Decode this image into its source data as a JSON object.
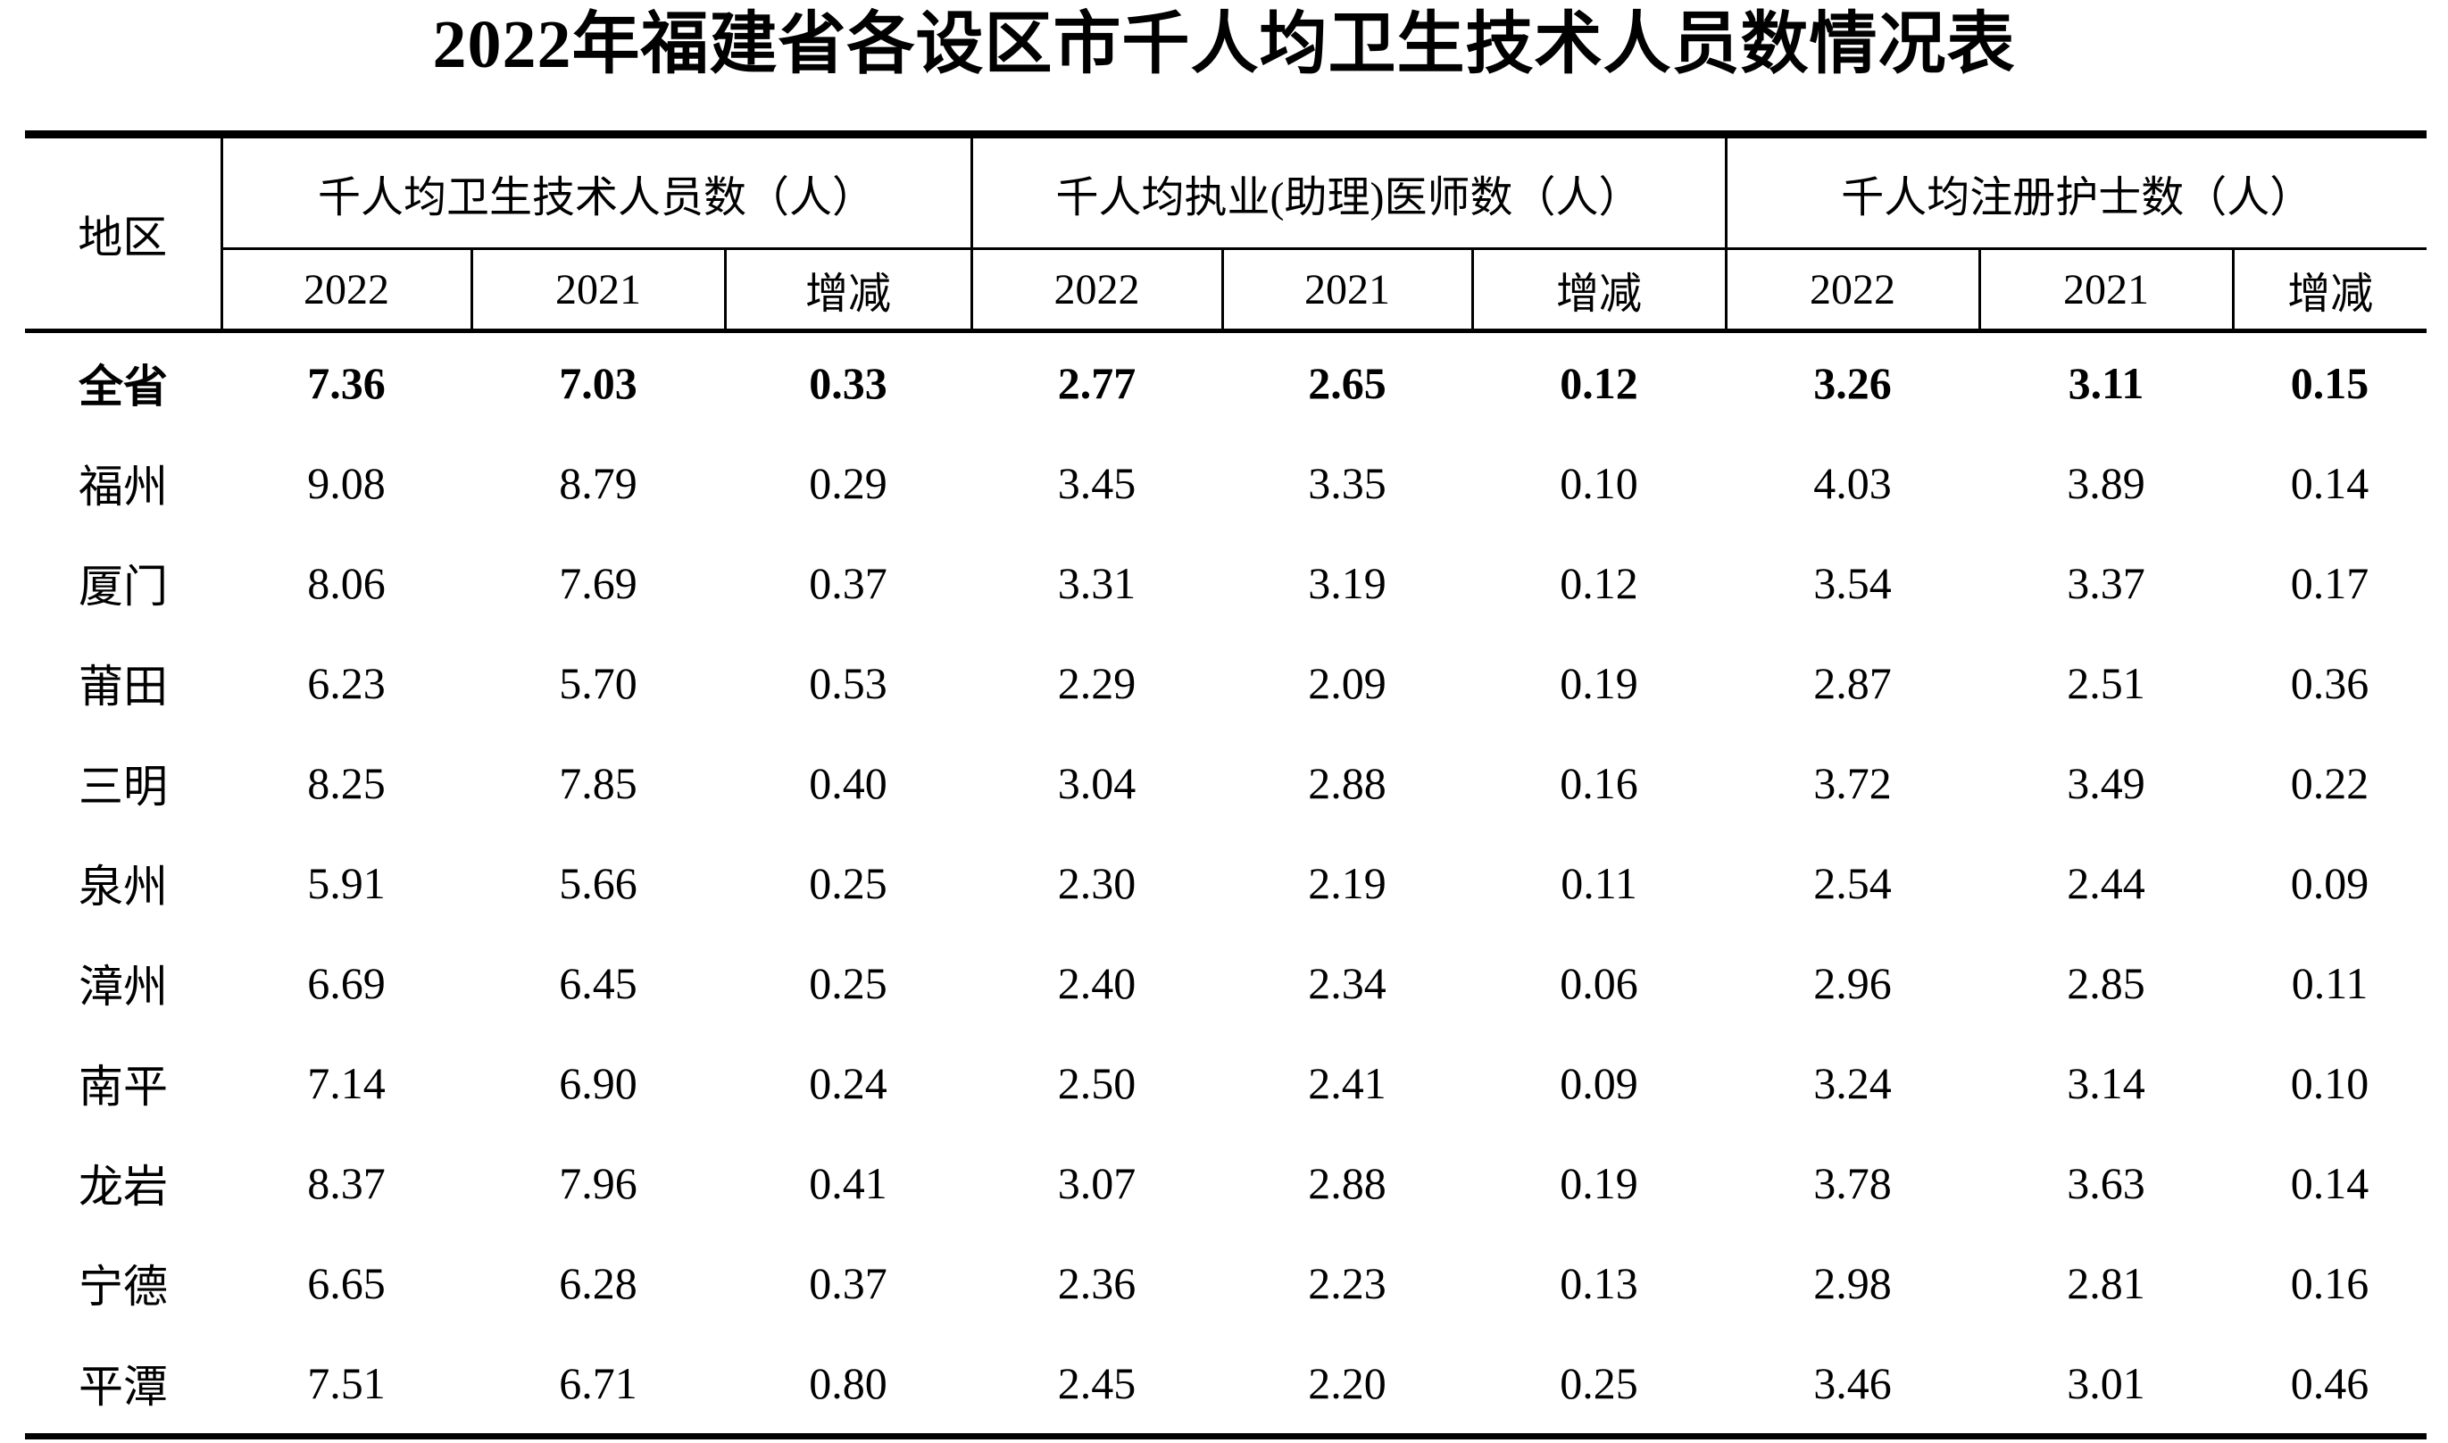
{
  "title": "2022年福建省各设区市千人均卫生技术人员数情况表",
  "colors": {
    "ink": "#000000",
    "background": "#ffffff"
  },
  "table": {
    "region_header": "地区",
    "groups": [
      {
        "label": "千人均卫生技术人员数（人）",
        "columns": [
          "2022",
          "2021",
          "增减"
        ]
      },
      {
        "label": "千人均执业(助理)医师数（人）",
        "columns": [
          "2022",
          "2021",
          "增减"
        ]
      },
      {
        "label": "千人均注册护士数（人）",
        "columns": [
          "2022",
          "2021",
          "增减"
        ]
      }
    ],
    "rows": [
      {
        "region": "全省",
        "bold": true,
        "values": [
          "7.36",
          "7.03",
          "0.33",
          "2.77",
          "2.65",
          "0.12",
          "3.26",
          "3.11",
          "0.15"
        ]
      },
      {
        "region": "福州",
        "bold": false,
        "values": [
          "9.08",
          "8.79",
          "0.29",
          "3.45",
          "3.35",
          "0.10",
          "4.03",
          "3.89",
          "0.14"
        ]
      },
      {
        "region": "厦门",
        "bold": false,
        "values": [
          "8.06",
          "7.69",
          "0.37",
          "3.31",
          "3.19",
          "0.12",
          "3.54",
          "3.37",
          "0.17"
        ]
      },
      {
        "region": "莆田",
        "bold": false,
        "values": [
          "6.23",
          "5.70",
          "0.53",
          "2.29",
          "2.09",
          "0.19",
          "2.87",
          "2.51",
          "0.36"
        ]
      },
      {
        "region": "三明",
        "bold": false,
        "values": [
          "8.25",
          "7.85",
          "0.40",
          "3.04",
          "2.88",
          "0.16",
          "3.72",
          "3.49",
          "0.22"
        ]
      },
      {
        "region": "泉州",
        "bold": false,
        "values": [
          "5.91",
          "5.66",
          "0.25",
          "2.30",
          "2.19",
          "0.11",
          "2.54",
          "2.44",
          "0.09"
        ]
      },
      {
        "region": "漳州",
        "bold": false,
        "values": [
          "6.69",
          "6.45",
          "0.25",
          "2.40",
          "2.34",
          "0.06",
          "2.96",
          "2.85",
          "0.11"
        ]
      },
      {
        "region": "南平",
        "bold": false,
        "values": [
          "7.14",
          "6.90",
          "0.24",
          "2.50",
          "2.41",
          "0.09",
          "3.24",
          "3.14",
          "0.10"
        ]
      },
      {
        "region": "龙岩",
        "bold": false,
        "values": [
          "8.37",
          "7.96",
          "0.41",
          "3.07",
          "2.88",
          "0.19",
          "3.78",
          "3.63",
          "0.14"
        ]
      },
      {
        "region": "宁德",
        "bold": false,
        "values": [
          "6.65",
          "6.28",
          "0.37",
          "2.36",
          "2.23",
          "0.13",
          "2.98",
          "2.81",
          "0.16"
        ]
      },
      {
        "region": "平潭",
        "bold": false,
        "values": [
          "7.51",
          "6.71",
          "0.80",
          "2.45",
          "2.20",
          "0.25",
          "3.46",
          "3.01",
          "0.46"
        ]
      }
    ]
  }
}
